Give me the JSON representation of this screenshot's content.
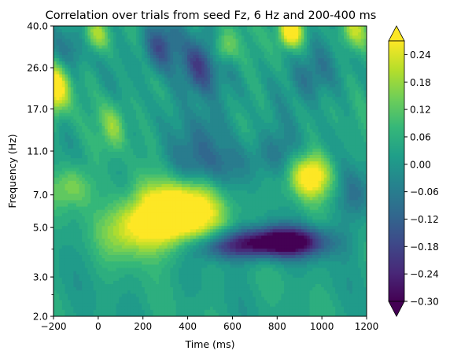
{
  "chart_data": {
    "type": "heatmap",
    "title": "Correlation over trials from seed Fz, 6 Hz and 200-400 ms",
    "xlabel": "Time (ms)",
    "ylabel": "Frequency (Hz)",
    "xlim": [
      -200,
      1200
    ],
    "ylim": [
      2.0,
      40.0
    ],
    "yscale": "log",
    "x_ticks": [
      -200,
      0,
      200,
      400,
      600,
      800,
      1000,
      1200
    ],
    "x_tick_labels": [
      "−200",
      "0",
      "200",
      "400",
      "600",
      "800",
      "1000",
      "1200"
    ],
    "y_ticks": [
      2.0,
      3.0,
      5.0,
      7.0,
      11.0,
      17.0,
      26.0,
      40.0
    ],
    "y_tick_labels": [
      "2.0",
      "3.0",
      "5.0",
      "7.0",
      "11.0",
      "17.0",
      "26.0",
      "40.0"
    ],
    "y_minor_ticks": [
      2.5,
      4.0
    ],
    "colorbar": {
      "colormap": "viridis",
      "range": [
        -0.3,
        0.27
      ],
      "extend": "both",
      "ticks": [
        0.24,
        0.18,
        0.12,
        0.06,
        0.0,
        -0.06,
        -0.12,
        -0.18,
        -0.24,
        -0.3
      ],
      "tick_labels": [
        "0.24",
        "0.18",
        "0.12",
        "0.06",
        "0.00",
        "−0.06",
        "−0.12",
        "−0.18",
        "−0.24",
        "−0.30"
      ],
      "colors": [
        "#440154",
        "#482878",
        "#3e4989",
        "#31688e",
        "#26828e",
        "#1f9e89",
        "#35b779",
        "#6ece58",
        "#b5de2b",
        "#fde725"
      ]
    },
    "features": [
      {
        "t": 380,
        "f": 6.0,
        "amp": 0.3,
        "st": 130,
        "sf": 0.22
      },
      {
        "t": 260,
        "f": 5.2,
        "amp": 0.18,
        "st": 120,
        "sf": 0.22
      },
      {
        "t": 950,
        "f": 8.5,
        "amp": 0.28,
        "st": 70,
        "sf": 0.16
      },
      {
        "t": 70,
        "f": 14.5,
        "amp": 0.14,
        "st": 40,
        "sf": 0.18
      },
      {
        "t": -190,
        "f": 21.0,
        "amp": 0.28,
        "st": 45,
        "sf": 0.18
      },
      {
        "t": 860,
        "f": 38.0,
        "amp": 0.32,
        "st": 40,
        "sf": 0.12
      },
      {
        "t": 1140,
        "f": 38.0,
        "amp": 0.16,
        "st": 45,
        "sf": 0.14
      },
      {
        "t": -10,
        "f": 36.0,
        "amp": 0.16,
        "st": 40,
        "sf": 0.12
      },
      {
        "t": 560,
        "f": 32.0,
        "amp": 0.16,
        "st": 40,
        "sf": 0.12
      },
      {
        "t": -120,
        "f": 7.6,
        "amp": 0.14,
        "st": 70,
        "sf": 0.16
      },
      {
        "t": 120,
        "f": 4.8,
        "amp": 0.12,
        "st": 80,
        "sf": 0.2
      },
      {
        "t": 820,
        "f": 4.3,
        "amp": -0.42,
        "st": 140,
        "sf": 0.11
      },
      {
        "t": 560,
        "f": 4.1,
        "amp": -0.18,
        "st": 110,
        "sf": 0.1
      },
      {
        "t": 470,
        "f": 9.5,
        "amp": -0.12,
        "st": 120,
        "sf": 0.18
      },
      {
        "t": 450,
        "f": 26.0,
        "amp": -0.22,
        "st": 60,
        "sf": 0.22
      },
      {
        "t": 270,
        "f": 32.0,
        "amp": -0.18,
        "st": 60,
        "sf": 0.18
      },
      {
        "t": 950,
        "f": 24.0,
        "amp": -0.14,
        "st": 60,
        "sf": 0.2
      },
      {
        "t": 780,
        "f": 10.5,
        "amp": -0.1,
        "st": 90,
        "sf": 0.18
      },
      {
        "t": 480,
        "f": 14.0,
        "amp": -0.1,
        "st": 60,
        "sf": 0.2
      },
      {
        "t": 1150,
        "f": 7.0,
        "amp": -0.1,
        "st": 60,
        "sf": 0.2
      },
      {
        "t": -100,
        "f": 32.0,
        "amp": -0.08,
        "st": 60,
        "sf": 0.15
      }
    ]
  }
}
